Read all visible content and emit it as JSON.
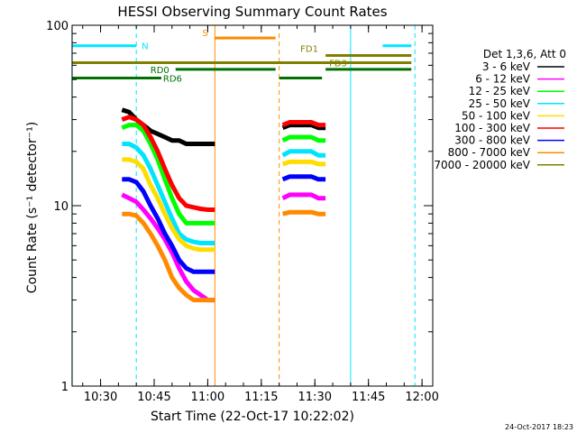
{
  "chart_data": {
    "type": "line",
    "title": "HESSI Observing Summary Count Rates",
    "xlabel": "Start Time (22-Oct-17 10:22:02)",
    "ylabel": "Count Rate (s⁻¹ detector⁻¹)",
    "y_scale": "log",
    "ylim": [
      1,
      100
    ],
    "xlim": [
      "10:22:02",
      "12:03"
    ],
    "x_ticks": [
      "10:30",
      "10:45",
      "11:00",
      "11:15",
      "11:30",
      "11:45",
      "12:00"
    ],
    "y_ticks": [
      "1",
      "10",
      "100"
    ],
    "footer_date": "24-Oct-2017 18:23",
    "legend_title": "Det 1,3,6, Att 0",
    "legend_placement": "right",
    "flags": [
      {
        "label": "N",
        "color": "#00e5ff",
        "y": 77,
        "x_start": "10:22",
        "x_end": "10:40"
      },
      {
        "label": "",
        "color": "#00e5ff",
        "y": 77,
        "x_start": "11:49",
        "x_end": "11:57"
      },
      {
        "label": "S",
        "color": "#ff8a00",
        "y": 85,
        "x_start": "11:02",
        "x_end": "11:19"
      },
      {
        "label": "FD1",
        "color": "#808000",
        "y": 68,
        "x_start": "11:33",
        "x_end": "11:57"
      },
      {
        "label": "FD3",
        "color": "#808000",
        "y": 62,
        "x_start": "10:22",
        "x_end": "11:57"
      },
      {
        "label": "RD0",
        "color": "#007000",
        "y": 57,
        "x_start": "10:51",
        "x_end": "11:19"
      },
      {
        "label": "",
        "color": "#007000",
        "y": 57,
        "x_start": "11:33",
        "x_end": "11:57"
      },
      {
        "label": "RD6",
        "color": "#007000",
        "y": 51,
        "x_start": "10:22",
        "x_end": "10:47"
      },
      {
        "label": "",
        "color": "#007000",
        "y": 51,
        "x_start": "11:20",
        "x_end": "11:32"
      }
    ],
    "vlines": [
      {
        "time": "10:22",
        "color": "#00e5ff",
        "style": "solid"
      },
      {
        "time": "10:40",
        "color": "#00e5ff",
        "style": "dashed"
      },
      {
        "time": "11:02",
        "color": "#ff8a00",
        "style": "solid"
      },
      {
        "time": "11:20",
        "color": "#ff8a00",
        "style": "dashed"
      },
      {
        "time": "11:40",
        "color": "#00e5ff",
        "style": "solid"
      },
      {
        "time": "11:58",
        "color": "#00e5ff",
        "style": "dashed"
      }
    ],
    "series": [
      {
        "name": "3 - 6 keV",
        "color": "#000000",
        "x": [
          "10:36",
          "10:38",
          "10:40",
          "10:42",
          "10:44",
          "10:46",
          "10:48",
          "10:50",
          "10:52",
          "10:54",
          "10:56",
          "10:58",
          "11:00",
          "11:02",
          null,
          "11:21",
          "11:23",
          "11:25",
          "11:27",
          "11:29",
          "11:31",
          "11:33"
        ],
        "y": [
          34,
          33,
          30,
          28,
          26,
          25,
          24,
          23,
          23,
          22,
          22,
          22,
          22,
          22,
          null,
          27,
          28,
          28,
          28,
          28,
          27,
          27
        ]
      },
      {
        "name": "6 - 12 keV",
        "color": "#ff00ff",
        "x": [
          "10:36",
          "10:38",
          "10:40",
          "10:42",
          "10:44",
          "10:46",
          "10:48",
          "10:50",
          "10:52",
          "10:54",
          "10:56",
          "10:58",
          "11:00",
          "11:02",
          null,
          "11:21",
          "11:23",
          "11:25",
          "11:27",
          "11:29",
          "11:31",
          "11:33"
        ],
        "y": [
          11.5,
          11,
          10.5,
          9.5,
          8.5,
          7.5,
          6.5,
          5.5,
          4.5,
          3.8,
          3.4,
          3.2,
          3.0,
          3.0,
          null,
          11,
          11.5,
          11.5,
          11.5,
          11.5,
          11,
          11
        ]
      },
      {
        "name": "12 - 25 keV",
        "color": "#00ff00",
        "x": [
          "10:36",
          "10:38",
          "10:40",
          "10:42",
          "10:44",
          "10:46",
          "10:48",
          "10:50",
          "10:52",
          "10:54",
          "10:56",
          "10:58",
          "11:00",
          "11:02",
          null,
          "11:21",
          "11:23",
          "11:25",
          "11:27",
          "11:29",
          "11:31",
          "11:33"
        ],
        "y": [
          27,
          28,
          28,
          26,
          22,
          18,
          14,
          11,
          9,
          8,
          8,
          8,
          8,
          8,
          null,
          23,
          24,
          24,
          24,
          24,
          23,
          23
        ]
      },
      {
        "name": "25 - 50 keV",
        "color": "#00e5ff",
        "x": [
          "10:36",
          "10:38",
          "10:40",
          "10:42",
          "10:44",
          "10:46",
          "10:48",
          "10:50",
          "10:52",
          "10:54",
          "10:56",
          "10:58",
          "11:00",
          "11:02",
          null,
          "11:21",
          "11:23",
          "11:25",
          "11:27",
          "11:29",
          "11:31",
          "11:33"
        ],
        "y": [
          22,
          22,
          21,
          19,
          16,
          13,
          10.5,
          8.5,
          7,
          6.5,
          6.3,
          6.2,
          6.2,
          6.2,
          null,
          19,
          20,
          20,
          20,
          20,
          19,
          19
        ]
      },
      {
        "name": "50 - 100 keV",
        "color": "#ffdd00",
        "x": [
          "10:36",
          "10:38",
          "10:40",
          "10:42",
          "10:44",
          "10:46",
          "10:48",
          "10:50",
          "10:52",
          "10:54",
          "10:56",
          "10:58",
          "11:00",
          "11:02",
          null,
          "11:21",
          "11:23",
          "11:25",
          "11:27",
          "11:29",
          "11:31",
          "11:33"
        ],
        "y": [
          18,
          18,
          17.5,
          16,
          13,
          11,
          9,
          7.5,
          6.5,
          6,
          5.8,
          5.7,
          5.7,
          5.7,
          null,
          17,
          17.5,
          17.5,
          17.5,
          17.5,
          17,
          17
        ]
      },
      {
        "name": "100 - 300 keV",
        "color": "#ff0000",
        "x": [
          "10:36",
          "10:38",
          "10:40",
          "10:42",
          "10:44",
          "10:46",
          "10:48",
          "10:50",
          "10:52",
          "10:54",
          "10:56",
          "10:58",
          "11:00",
          "11:02",
          null,
          "11:21",
          "11:23",
          "11:25",
          "11:27",
          "11:29",
          "11:31",
          "11:33"
        ],
        "y": [
          30,
          31,
          30,
          28,
          24,
          20,
          16,
          13,
          11,
          10,
          9.8,
          9.6,
          9.5,
          9.5,
          null,
          28,
          29,
          29,
          29,
          29,
          28,
          28
        ]
      },
      {
        "name": "300 - 800 keV",
        "color": "#0000ff",
        "x": [
          "10:36",
          "10:38",
          "10:40",
          "10:42",
          "10:44",
          "10:46",
          "10:48",
          "10:50",
          "10:52",
          "10:54",
          "10:56",
          "10:58",
          "11:00",
          "11:02",
          null,
          "11:21",
          "11:23",
          "11:25",
          "11:27",
          "11:29",
          "11:31",
          "11:33"
        ],
        "y": [
          14,
          14,
          13.5,
          12,
          10,
          8.5,
          7,
          6,
          5,
          4.5,
          4.3,
          4.3,
          4.3,
          4.3,
          null,
          14,
          14.5,
          14.5,
          14.5,
          14.5,
          14,
          14
        ]
      },
      {
        "name": "800 - 7000 keV",
        "color": "#ff8a00",
        "x": [
          "10:36",
          "10:38",
          "10:40",
          "10:42",
          "10:44",
          "10:46",
          "10:48",
          "10:50",
          "10:52",
          "10:54",
          "10:56",
          "10:58",
          "11:00",
          "11:02",
          null,
          "11:21",
          "11:23",
          "11:25",
          "11:27",
          "11:29",
          "11:31",
          "11:33"
        ],
        "y": [
          9,
          9,
          8.8,
          8,
          7,
          6,
          5,
          4,
          3.5,
          3.2,
          3.0,
          3.0,
          3.0,
          3.0,
          null,
          9,
          9.2,
          9.2,
          9.2,
          9.2,
          9,
          9
        ]
      },
      {
        "name": "7000 - 20000 keV",
        "color": "#808000",
        "x": [],
        "y": []
      }
    ]
  }
}
